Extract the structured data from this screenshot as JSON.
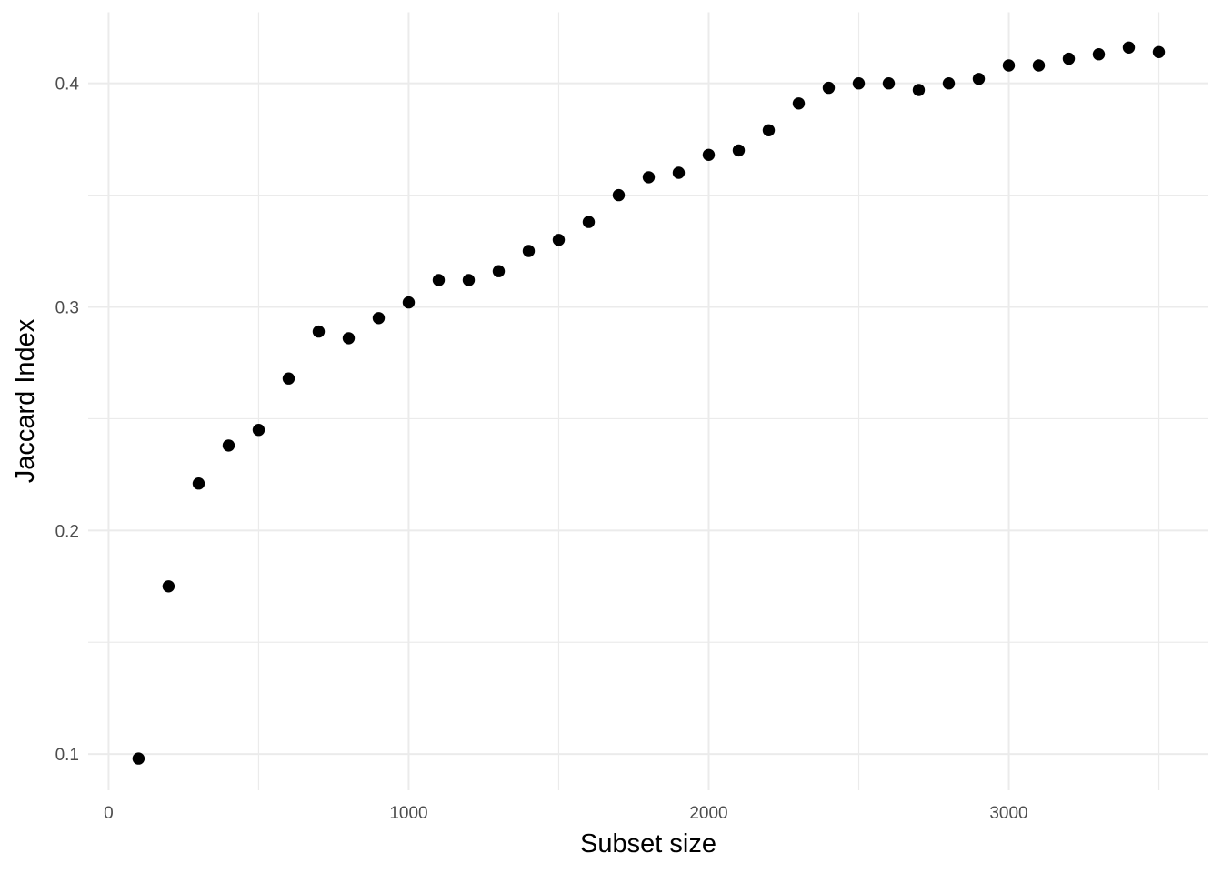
{
  "chart_data": {
    "type": "scatter",
    "title": "",
    "xlabel": "Subset size",
    "ylabel": "Jaccard Index",
    "x": [
      100,
      200,
      300,
      400,
      500,
      600,
      700,
      800,
      900,
      1000,
      1100,
      1200,
      1300,
      1400,
      1500,
      1600,
      1700,
      1800,
      1900,
      2000,
      2100,
      2200,
      2300,
      2400,
      2500,
      2600,
      2700,
      2800,
      2900,
      3000,
      3100,
      3200,
      3300,
      3400,
      3500
    ],
    "y": [
      0.098,
      0.175,
      0.221,
      0.238,
      0.245,
      0.268,
      0.289,
      0.286,
      0.295,
      0.302,
      0.312,
      0.312,
      0.316,
      0.325,
      0.33,
      0.338,
      0.35,
      0.358,
      0.36,
      0.368,
      0.37,
      0.379,
      0.391,
      0.398,
      0.4,
      0.4,
      0.397,
      0.4,
      0.402,
      0.408,
      0.408,
      0.411,
      0.413,
      0.416,
      0.414
    ],
    "xlim": [
      -68,
      3665
    ],
    "ylim": [
      0.0838,
      0.4318
    ],
    "x_major_ticks": [
      0,
      1000,
      2000,
      3000
    ],
    "x_tick_labels": [
      "0",
      "1000",
      "2000",
      "3000"
    ],
    "x_minor_ticks": [
      500,
      1500,
      2500,
      3500
    ],
    "y_major_ticks": [
      0.1,
      0.2,
      0.3,
      0.4
    ],
    "y_tick_labels": [
      "0.1",
      "0.2",
      "0.3",
      "0.4"
    ],
    "y_minor_ticks": [
      0.15,
      0.25,
      0.35
    ],
    "grid": "on",
    "legend": "none",
    "point_radius": 6.7,
    "colors": {
      "point": "#000000",
      "grid": "#EBEBEB",
      "tick_label": "#4D4D4D",
      "axis_title": "#000000",
      "background": "#FFFFFF"
    }
  }
}
